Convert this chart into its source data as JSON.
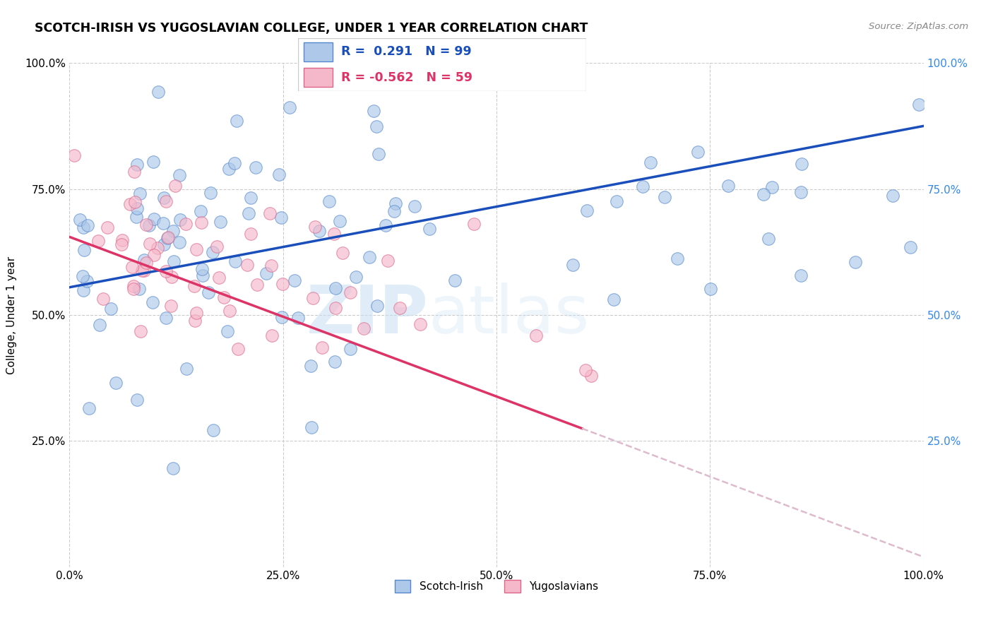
{
  "title": "SCOTCH-IRISH VS YUGOSLAVIAN COLLEGE, UNDER 1 YEAR CORRELATION CHART",
  "source": "Source: ZipAtlas.com",
  "ylabel": "College, Under 1 year",
  "xlabel": "",
  "r_scotch_irish": 0.291,
  "n_scotch_irish": 99,
  "r_yugoslavian": -0.562,
  "n_yugoslavian": 59,
  "xlim": [
    0.0,
    1.0
  ],
  "ylim": [
    0.0,
    1.0
  ],
  "xtick_vals": [
    0.0,
    0.25,
    0.5,
    0.75,
    1.0
  ],
  "ytick_vals": [
    0.0,
    0.25,
    0.5,
    0.75,
    1.0
  ],
  "scotch_irish_color": "#adc8e8",
  "scotch_irish_edge": "#5588cc",
  "yugoslavian_color": "#f5b8cb",
  "yugoslavian_edge": "#dd6688",
  "trend_scotch_irish_color": "#1a4fbb",
  "trend_yugoslavian_color": "#dd3366",
  "trend_extended_color": "#ddbbcc",
  "background_color": "#ffffff",
  "grid_color": "#cccccc",
  "watermark_zip": "ZIP",
  "watermark_atlas": "atlas",
  "si_line_x0": 0.0,
  "si_line_y0": 0.555,
  "si_line_x1": 1.0,
  "si_line_y1": 0.875,
  "yu_line_x0": 0.0,
  "yu_line_y0": 0.655,
  "yu_line_x1": 0.6,
  "yu_line_y1": 0.275,
  "yu_line_ext_x1": 1.0,
  "yu_line_ext_y1": 0.02
}
